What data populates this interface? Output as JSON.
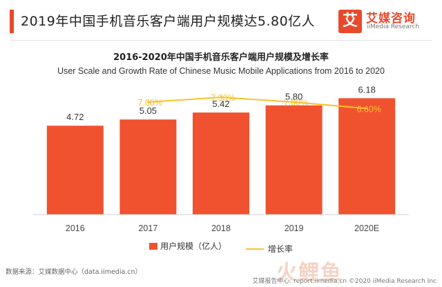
{
  "header": {
    "title": "2019年中国手机音乐客户端用户规模达5.80亿人",
    "accent_color": "#e8492b"
  },
  "logo": {
    "mark": "艾",
    "name": "艾媒咨询",
    "name_en": "iiMedia Research",
    "color": "#e8492b"
  },
  "chart_data": {
    "type": "bar",
    "title": "2016-2020年中国手机音乐客户端用户规模及增长率",
    "subtitle": "User Scale and Growth Rate of Chinese Music Mobile Applications from 2016 to 2020",
    "categories": [
      "2016",
      "2017",
      "2018",
      "2019",
      "2020E"
    ],
    "series": [
      {
        "name": "用户规模（亿人）",
        "kind": "bar",
        "values": [
          4.72,
          5.05,
          5.42,
          5.8,
          6.18
        ],
        "labels": [
          "4.72",
          "5.05",
          "5.42",
          "5.80",
          "6.18"
        ],
        "color": "#f0522f"
      },
      {
        "name": "增长率",
        "kind": "line",
        "values": [
          null,
          7.0,
          7.3,
          7.0,
          6.6
        ],
        "labels": [
          "",
          "7.00%",
          "7.30%",
          "7.00%",
          "6.60%"
        ],
        "color": "#fac12c"
      }
    ],
    "ylim": [
      0,
      7
    ],
    "growth_ylim": [
      0,
      8.2
    ],
    "grid": false,
    "legend": "bottom"
  },
  "footer": {
    "source": "数据来源：艾媒数据中心（data.iimedia.cn）",
    "watermark": "火鲤鱼",
    "copyright": "艾媒报告中心: report.iimedia.cn ©2020 iiMedia Research Inc"
  }
}
